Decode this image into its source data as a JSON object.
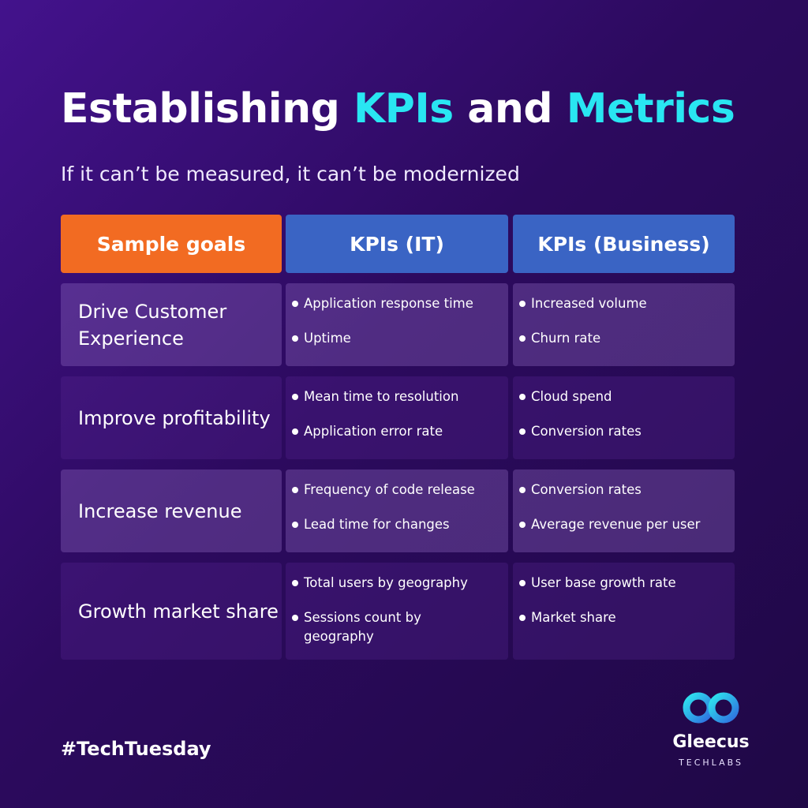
{
  "header": {
    "title_part1": "Establishing ",
    "title_accent1": "KPIs",
    "title_part2": " and ",
    "title_accent2": "Metrics",
    "subtitle": "If it can’t be measured, it can’t be modernized"
  },
  "table": {
    "columns": [
      "Sample goals",
      "KPIs (IT)",
      "KPIs (Business)"
    ],
    "rows": [
      {
        "goal": "Drive Customer Experience",
        "it": [
          "Application response time",
          "Uptime"
        ],
        "business": [
          "Increased volume",
          "Churn rate"
        ]
      },
      {
        "goal": "Improve profitability",
        "it": [
          "Mean time to resolution",
          "Application error rate"
        ],
        "business": [
          "Cloud spend",
          "Conversion rates"
        ]
      },
      {
        "goal": "Increase revenue",
        "it": [
          "Frequency of code release",
          "Lead time for changes"
        ],
        "business": [
          "Conversion rates",
          "Average revenue per user"
        ]
      },
      {
        "goal": "Growth market share",
        "it": [
          "Total users by geography",
          "Sessions count by geography"
        ],
        "business": [
          "User base growth rate",
          "Market share"
        ]
      }
    ]
  },
  "footer": {
    "hashtag": "#TechTuesday",
    "brand_name": "Gleecus",
    "brand_sub": "TECHLABS"
  },
  "colors": {
    "accent": "#29e6f2",
    "goal_header": "#f26b22",
    "kpi_header": "#3a64c4",
    "background": "#2c0a5e"
  },
  "icons": {
    "logo": "gleecus-infinity-logo-icon"
  }
}
